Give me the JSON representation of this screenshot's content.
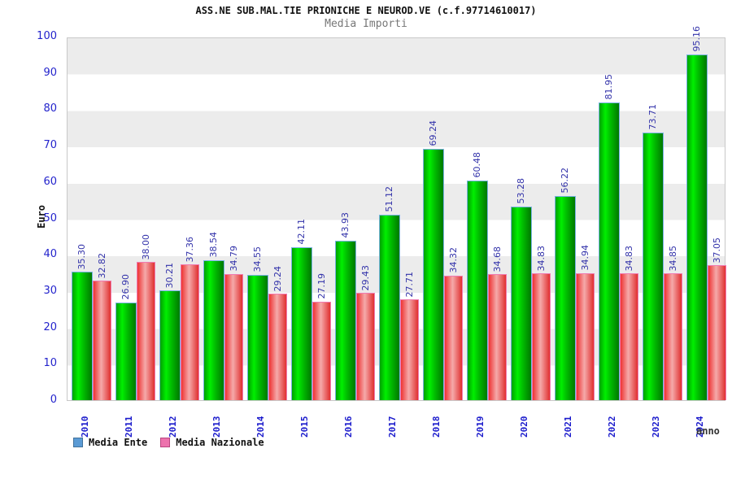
{
  "header": {
    "title": "ASS.NE SUB.MAL.TIE PRIONICHE E NEUROD.VE (c.f.97714610017)",
    "subtitle": "Media Importi"
  },
  "axes": {
    "ylabel": "Euro",
    "xlabel": "anno",
    "yticks": [
      0,
      10,
      20,
      30,
      40,
      50,
      60,
      70,
      80,
      90,
      100
    ],
    "tick_color": "#2323cc"
  },
  "legend": [
    {
      "label": "Media Ente",
      "color": "#5b9bd5",
      "border": "#41729c"
    },
    {
      "label": "Media Nazionale",
      "color": "#ed72ad",
      "border": "#b8457f"
    }
  ],
  "chart_data": {
    "type": "bar",
    "title": "ASS.NE SUB.MAL.TIE PRIONICHE E NEUROD.VE (c.f.97714610017)",
    "subtitle": "Media Importi",
    "xlabel": "anno",
    "ylabel": "Euro",
    "ylim": [
      0,
      100
    ],
    "grid": "horizontal-bands-every-10",
    "legend_position": "bottom-left",
    "value_label_color": "#3333aa",
    "categories": [
      "2010",
      "2011",
      "2012",
      "2013",
      "2014",
      "2015",
      "2016",
      "2017",
      "2018",
      "2019",
      "2020",
      "2021",
      "2022",
      "2023",
      "2024"
    ],
    "series": [
      {
        "name": "Media Ente",
        "color": "#00cc00",
        "values": [
          35.3,
          26.9,
          30.21,
          38.54,
          34.55,
          42.11,
          43.93,
          51.12,
          69.24,
          60.48,
          53.28,
          56.22,
          81.95,
          73.71,
          95.16
        ]
      },
      {
        "name": "Media Nazionale",
        "color": "#e03a3a",
        "values": [
          32.82,
          38.0,
          37.36,
          34.79,
          29.24,
          27.19,
          29.43,
          27.71,
          34.32,
          34.68,
          34.83,
          34.94,
          34.83,
          34.85,
          37.05
        ]
      }
    ]
  }
}
